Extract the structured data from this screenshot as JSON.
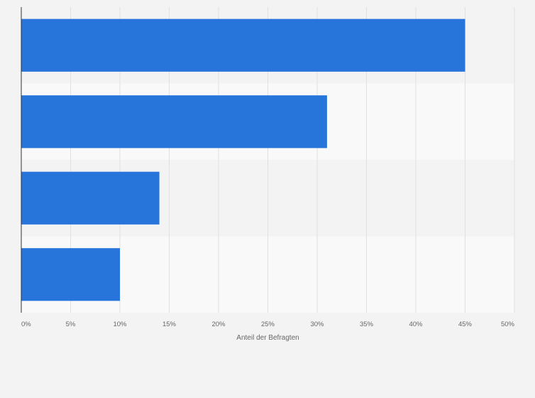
{
  "chart_data": {
    "type": "bar",
    "orientation": "horizontal",
    "categories": [
      "",
      "",
      "",
      ""
    ],
    "values": [
      45,
      31,
      14,
      10
    ],
    "title": "",
    "xlabel": "Anteil der Befragten",
    "ylabel": "",
    "xlim": [
      0,
      50
    ],
    "x_ticks": [
      0,
      5,
      10,
      15,
      20,
      25,
      30,
      35,
      40,
      45,
      50
    ],
    "tick_labels": [
      "0%",
      "5%",
      "10%",
      "15%",
      "20%",
      "25%",
      "30%",
      "35%",
      "40%",
      "45%",
      "50%"
    ],
    "grid": true,
    "legend": "none",
    "bar_color": "#2775db",
    "band_colors": [
      "#f3f3f3",
      "#f9f9f9"
    ],
    "grid_color": "#e0e0e0"
  }
}
